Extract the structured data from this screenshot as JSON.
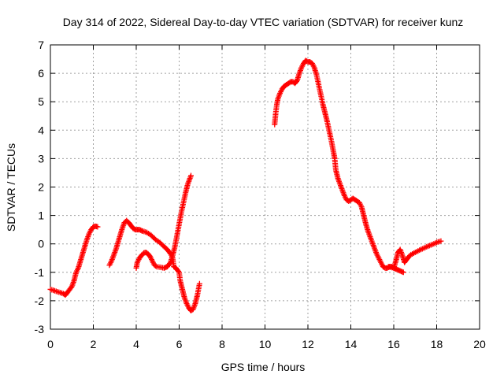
{
  "chart_data": {
    "type": "scatter",
    "title": "Day 314 of 2022, Sidereal Day-to-day VTEC variation (SDTVAR) for receiver kunz",
    "xlabel": "GPS time / hours",
    "ylabel": "SDTVAR / TECUs",
    "xlim": [
      0,
      20
    ],
    "ylim": [
      -3,
      7
    ],
    "xticks": [
      0,
      2,
      4,
      6,
      8,
      10,
      12,
      14,
      16,
      18,
      20
    ],
    "yticks": [
      -3,
      -2,
      -1,
      0,
      1,
      2,
      3,
      4,
      5,
      6,
      7
    ],
    "grid": true,
    "legend": "none",
    "marker": "+",
    "series": [
      {
        "color": "#ff0000",
        "segments": [
          [
            [
              0.0,
              -1.6
            ],
            [
              0.2,
              -1.65
            ],
            [
              0.4,
              -1.7
            ],
            [
              0.6,
              -1.75
            ],
            [
              0.7,
              -1.8
            ],
            [
              0.8,
              -1.7
            ],
            [
              1.0,
              -1.5
            ],
            [
              1.1,
              -1.3
            ],
            [
              1.2,
              -1.0
            ],
            [
              1.3,
              -0.85
            ],
            [
              1.4,
              -0.6
            ],
            [
              1.5,
              -0.35
            ],
            [
              1.6,
              -0.1
            ],
            [
              1.7,
              0.15
            ],
            [
              1.8,
              0.35
            ],
            [
              1.9,
              0.5
            ],
            [
              2.0,
              0.6
            ],
            [
              2.1,
              0.62
            ],
            [
              2.2,
              0.6
            ]
          ],
          [
            [
              2.75,
              -0.75
            ],
            [
              2.85,
              -0.6
            ],
            [
              2.95,
              -0.4
            ],
            [
              3.05,
              -0.2
            ],
            [
              3.15,
              0.05
            ],
            [
              3.25,
              0.3
            ],
            [
              3.35,
              0.55
            ],
            [
              3.45,
              0.75
            ],
            [
              3.55,
              0.82
            ],
            [
              3.65,
              0.75
            ],
            [
              3.75,
              0.65
            ],
            [
              3.85,
              0.55
            ],
            [
              3.95,
              0.5
            ],
            [
              4.05,
              0.5
            ],
            [
              4.15,
              0.5
            ],
            [
              4.3,
              0.45
            ],
            [
              4.5,
              0.4
            ],
            [
              4.7,
              0.3
            ],
            [
              4.9,
              0.15
            ],
            [
              5.1,
              0.05
            ],
            [
              5.3,
              -0.1
            ],
            [
              5.45,
              -0.2
            ],
            [
              5.6,
              -0.35
            ],
            [
              5.7,
              -0.5
            ],
            [
              5.75,
              -0.8
            ],
            [
              5.85,
              -0.85
            ],
            [
              6.0,
              -1.0
            ],
            [
              6.05,
              -1.3
            ],
            [
              6.15,
              -1.6
            ],
            [
              6.25,
              -1.9
            ],
            [
              6.35,
              -2.1
            ],
            [
              6.45,
              -2.25
            ],
            [
              6.55,
              -2.35
            ],
            [
              6.65,
              -2.3
            ],
            [
              6.75,
              -2.1
            ],
            [
              6.85,
              -1.8
            ],
            [
              6.95,
              -1.4
            ]
          ],
          [
            [
              4.0,
              -0.85
            ],
            [
              4.05,
              -0.65
            ],
            [
              4.15,
              -0.5
            ],
            [
              4.25,
              -0.4
            ],
            [
              4.35,
              -0.32
            ],
            [
              4.45,
              -0.3
            ],
            [
              4.55,
              -0.35
            ],
            [
              4.65,
              -0.45
            ],
            [
              4.75,
              -0.6
            ],
            [
              4.85,
              -0.75
            ],
            [
              4.95,
              -0.8
            ],
            [
              5.1,
              -0.82
            ],
            [
              5.3,
              -0.85
            ],
            [
              5.45,
              -0.8
            ],
            [
              5.6,
              -0.65
            ],
            [
              5.7,
              -0.4
            ],
            [
              5.8,
              -0.1
            ],
            [
              5.9,
              0.3
            ],
            [
              6.0,
              0.7
            ],
            [
              6.1,
              1.1
            ],
            [
              6.2,
              1.45
            ],
            [
              6.3,
              1.8
            ],
            [
              6.4,
              2.1
            ],
            [
              6.5,
              2.3
            ],
            [
              6.55,
              2.4
            ]
          ],
          [
            [
              10.45,
              4.2
            ],
            [
              10.5,
              4.6
            ],
            [
              10.55,
              4.9
            ],
            [
              10.6,
              5.1
            ],
            [
              10.7,
              5.3
            ],
            [
              10.8,
              5.45
            ],
            [
              10.9,
              5.55
            ],
            [
              11.0,
              5.6
            ],
            [
              11.1,
              5.65
            ],
            [
              11.2,
              5.7
            ],
            [
              11.3,
              5.7
            ],
            [
              11.4,
              5.65
            ],
            [
              11.5,
              5.75
            ],
            [
              11.6,
              6.0
            ],
            [
              11.7,
              6.2
            ],
            [
              11.8,
              6.35
            ],
            [
              11.9,
              6.45
            ],
            [
              12.0,
              6.4
            ],
            [
              12.1,
              6.4
            ],
            [
              12.2,
              6.35
            ],
            [
              12.3,
              6.2
            ],
            [
              12.4,
              5.95
            ],
            [
              12.5,
              5.6
            ],
            [
              12.6,
              5.25
            ],
            [
              12.7,
              4.9
            ],
            [
              12.8,
              4.6
            ],
            [
              12.9,
              4.3
            ],
            [
              13.0,
              3.95
            ],
            [
              13.1,
              3.6
            ],
            [
              13.2,
              3.2
            ],
            [
              13.25,
              3.0
            ],
            [
              13.3,
              2.6
            ],
            [
              13.4,
              2.3
            ],
            [
              13.5,
              2.1
            ],
            [
              13.6,
              1.9
            ],
            [
              13.7,
              1.7
            ],
            [
              13.8,
              1.55
            ],
            [
              13.9,
              1.5
            ],
            [
              14.0,
              1.55
            ],
            [
              14.1,
              1.6
            ],
            [
              14.2,
              1.55
            ],
            [
              14.3,
              1.5
            ],
            [
              14.4,
              1.45
            ],
            [
              14.5,
              1.3
            ],
            [
              14.6,
              1.0
            ],
            [
              14.7,
              0.7
            ],
            [
              14.8,
              0.45
            ],
            [
              14.9,
              0.25
            ],
            [
              15.0,
              0.05
            ],
            [
              15.1,
              -0.15
            ],
            [
              15.2,
              -0.35
            ],
            [
              15.3,
              -0.5
            ],
            [
              15.4,
              -0.65
            ],
            [
              15.5,
              -0.8
            ],
            [
              15.6,
              -0.85
            ],
            [
              15.7,
              -0.85
            ],
            [
              15.8,
              -0.8
            ],
            [
              15.9,
              -0.8
            ],
            [
              16.0,
              -0.85
            ],
            [
              16.1,
              -0.6
            ],
            [
              16.2,
              -0.3
            ],
            [
              16.3,
              -0.2
            ],
            [
              16.4,
              -0.4
            ],
            [
              16.5,
              -0.65
            ],
            [
              16.6,
              -0.55
            ],
            [
              16.7,
              -0.45
            ],
            [
              16.8,
              -0.38
            ],
            [
              17.0,
              -0.3
            ],
            [
              17.2,
              -0.22
            ],
            [
              17.4,
              -0.15
            ],
            [
              17.6,
              -0.08
            ],
            [
              17.8,
              -0.02
            ],
            [
              18.0,
              0.05
            ],
            [
              18.2,
              0.1
            ]
          ],
          [
            [
              15.75,
              -0.8
            ],
            [
              15.85,
              -0.82
            ],
            [
              16.0,
              -0.85
            ],
            [
              16.15,
              -0.9
            ],
            [
              16.3,
              -0.95
            ],
            [
              16.45,
              -1.0
            ]
          ]
        ]
      }
    ]
  }
}
